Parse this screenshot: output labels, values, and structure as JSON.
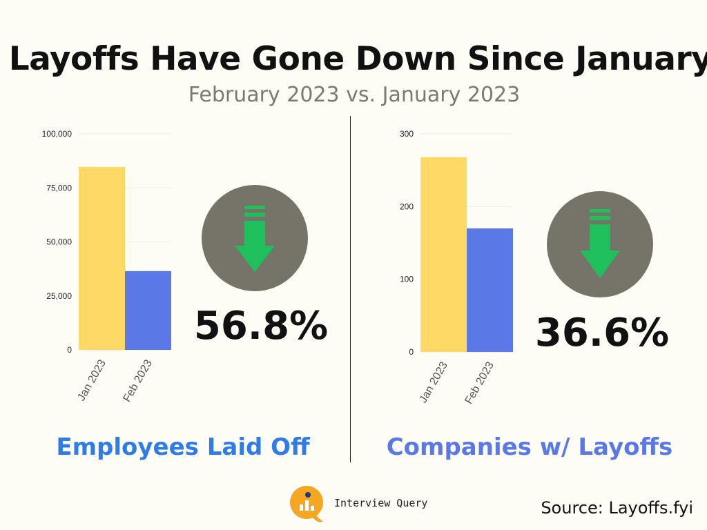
{
  "title": "Layoffs Have Gone Down Since January",
  "subtitle": "February 2023 vs. January 2023",
  "colors": {
    "jan": "#ffd966",
    "feb": "#5b79e6",
    "badge": "#767369",
    "arrow": "#1fc05c",
    "caption_left": "#2f7be8",
    "caption_right": "#5b79e6"
  },
  "chart_data": [
    {
      "type": "bar",
      "title": "Employees Laid Off",
      "categories": [
        "Jan 2023",
        "Feb 2023"
      ],
      "values": [
        84714,
        36491
      ],
      "ylim": [
        0,
        100000
      ],
      "yticks": [
        0,
        25000,
        50000,
        75000,
        100000
      ],
      "ytick_labels": [
        "0",
        "25,000",
        "50,000",
        "75,000",
        "100,000"
      ],
      "xlabel": "",
      "ylabel": ""
    },
    {
      "type": "bar",
      "title": "Companies w/ Layoffs",
      "categories": [
        "Jan 2023",
        "Feb 2023"
      ],
      "values": [
        268,
        170
      ],
      "ylim": [
        0,
        300
      ],
      "yticks": [
        0,
        100,
        200,
        300
      ],
      "ytick_labels": [
        "0",
        "100",
        "200",
        "300"
      ],
      "xlabel": "",
      "ylabel": ""
    }
  ],
  "left": {
    "percent": "56.8%",
    "caption": "Employees Laid Off"
  },
  "right": {
    "percent": "36.6%",
    "caption": "Companies w/ Layoffs"
  },
  "brand": {
    "name": "Interview Query",
    "icon": "interview-query-logo-icon"
  },
  "source": "Source: Layoffs.fyi",
  "icons": {
    "decrease": "down-arrow-icon"
  }
}
